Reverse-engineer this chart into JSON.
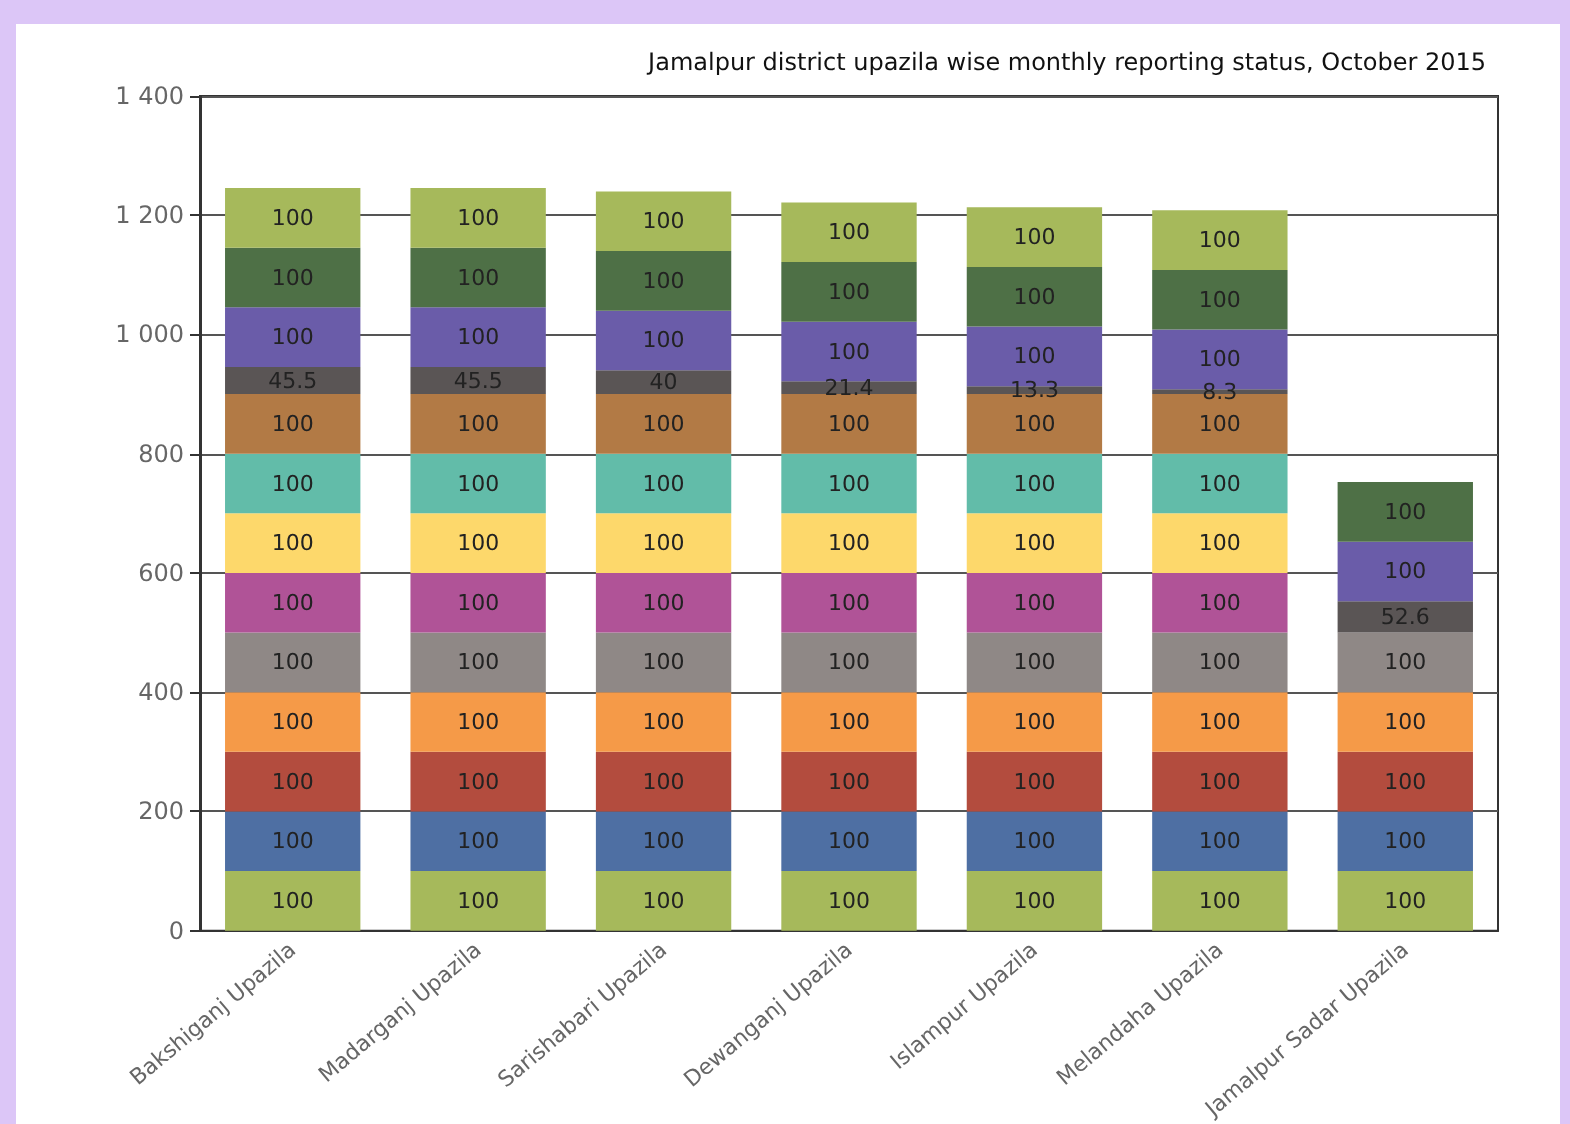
{
  "chart_data": {
    "type": "bar",
    "title": "Jamalpur district upazila wise monthly reporting status, October 2015",
    "categories": [
      "Bakshiganj Upazila",
      "Madarganj Upazila",
      "Sarishabari Upazila",
      "Dewanganj Upazila",
      "Islampur Upazila",
      "Melandaha Upazila",
      "Jamalpur Sadar Upazila"
    ],
    "stacked": true,
    "data_labels": true,
    "grid": "y",
    "ylim": [
      0,
      1400
    ],
    "yticks": [
      0,
      200,
      400,
      600,
      800,
      {
        "value": 1000,
        "label": "1 000"
      },
      {
        "value": 1200,
        "label": "1 200"
      },
      {
        "value": 1400,
        "label": "1 400"
      }
    ],
    "series": [
      {
        "color": "#a6b95b",
        "values": [
          100,
          100,
          100,
          100,
          100,
          100,
          100
        ]
      },
      {
        "color": "#4e6fa3",
        "values": [
          100,
          100,
          100,
          100,
          100,
          100,
          100
        ]
      },
      {
        "color": "#b34c3e",
        "values": [
          100,
          100,
          100,
          100,
          100,
          100,
          100
        ]
      },
      {
        "color": "#f59a48",
        "values": [
          100,
          100,
          100,
          100,
          100,
          100,
          100
        ]
      },
      {
        "color": "#8f8886",
        "values": [
          100,
          100,
          100,
          100,
          100,
          100,
          100
        ]
      },
      {
        "color": "#b05397",
        "values": [
          100,
          100,
          100,
          100,
          100,
          100,
          null
        ]
      },
      {
        "color": "#fdd86b",
        "values": [
          100,
          100,
          100,
          100,
          100,
          100,
          null
        ]
      },
      {
        "color": "#62bca9",
        "values": [
          100,
          100,
          100,
          100,
          100,
          100,
          null
        ]
      },
      {
        "color": "#b27a45",
        "values": [
          100,
          100,
          100,
          100,
          100,
          100,
          null
        ]
      },
      {
        "color": "#5a5555",
        "values": [
          45.5,
          45.5,
          40,
          21.4,
          13.3,
          8.3,
          52.6
        ]
      },
      {
        "color": "#6a5ca9",
        "values": [
          100,
          100,
          100,
          100,
          100,
          100,
          100
        ]
      },
      {
        "color": "#4e7046",
        "values": [
          100,
          100,
          100,
          100,
          100,
          100,
          100
        ]
      },
      {
        "color": "#a6b95b",
        "values": [
          100,
          100,
          100,
          100,
          100,
          100,
          null
        ]
      }
    ]
  }
}
